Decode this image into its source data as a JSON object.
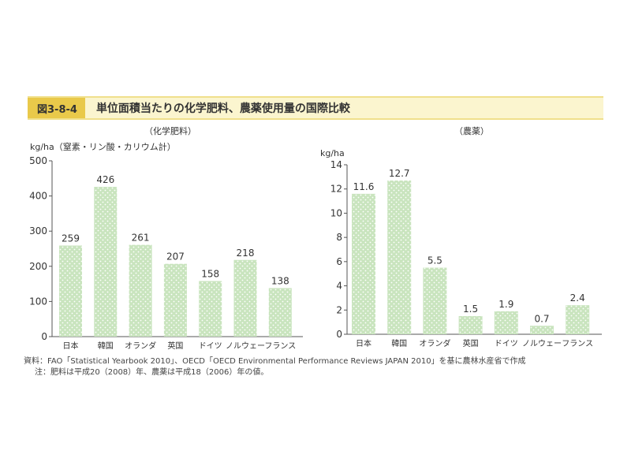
{
  "header": {
    "figure_id": "図3-8-4",
    "title": "単位面積当たりの化学肥料、農薬使用量の国際比較"
  },
  "chart_data": [
    {
      "type": "bar",
      "title": "（化学肥料）",
      "ylabel": "kg/ha（窒素・リン酸・カリウム計）",
      "categories": [
        "日本",
        "韓国",
        "オランダ",
        "英国",
        "ドイツ",
        "ノルウェー",
        "フランス"
      ],
      "values": [
        259,
        426,
        261,
        207,
        158,
        218,
        138
      ],
      "value_labels": [
        "259",
        "426",
        "261",
        "207",
        "158",
        "218",
        "138"
      ],
      "ylim": [
        0,
        500
      ],
      "yticks": [
        0,
        100,
        200,
        300,
        400,
        500
      ],
      "bar_color": "#cde6c4",
      "grid": false
    },
    {
      "type": "bar",
      "title": "（農薬）",
      "ylabel": "kg/ha",
      "categories": [
        "日本",
        "韓国",
        "オランダ",
        "英国",
        "ドイツ",
        "ノルウェー",
        "フランス"
      ],
      "values": [
        11.6,
        12.7,
        5.5,
        1.5,
        1.9,
        0.7,
        2.4
      ],
      "value_labels": [
        "11.6",
        "12.7",
        "5.5",
        "1.5",
        "1.9",
        "0.7",
        "2.4"
      ],
      "ylim": [
        0,
        14
      ],
      "yticks": [
        0,
        2,
        4,
        6,
        8,
        10,
        12,
        14
      ],
      "bar_color": "#cde6c4",
      "grid": false
    }
  ],
  "notes": {
    "source": "資料：FAO「Statistical Yearbook 2010」、OECD「OECD Environmental Performance Reviews JAPAN 2010」を基に農林水産省で作成",
    "note": "注：肥料は平成20（2008）年、農薬は平成18（2006）年の値。"
  }
}
